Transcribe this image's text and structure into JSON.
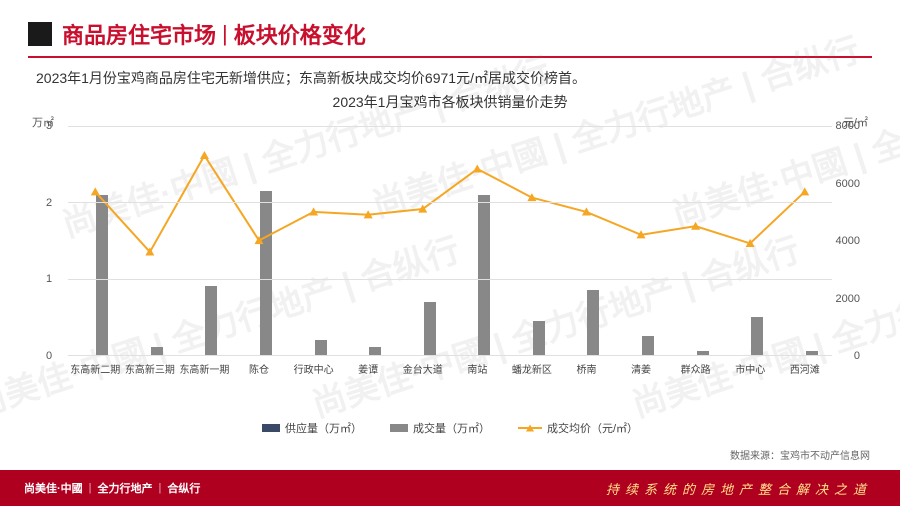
{
  "header": {
    "title_a": "商品房住宅市场",
    "title_b": "板块价格变化"
  },
  "subtitle": "2023年1月份宝鸡商品房住宅无新增供应；东高新板块成交均价6971元/㎡居成交价榜首。",
  "chart": {
    "type": "combo-bar-line",
    "title": "2023年1月宝鸡市各板块供销量价走势",
    "y_left": {
      "label": "万㎡",
      "min": 0,
      "max": 3,
      "ticks": [
        0,
        1,
        2,
        3
      ]
    },
    "y_right": {
      "label": "元/㎡",
      "min": 0,
      "max": 8000,
      "ticks": [
        0,
        2000,
        4000,
        6000,
        8000
      ]
    },
    "categories": [
      "东高新二期",
      "东高新三期",
      "东高新一期",
      "陈仓",
      "行政中心",
      "姜谭",
      "金台大道",
      "南站",
      "蟠龙新区",
      "桥南",
      "清姜",
      "群众路",
      "市中心",
      "西河滩"
    ],
    "supply": [
      0,
      0,
      0,
      0,
      0,
      0,
      0,
      0,
      0,
      0,
      0,
      0,
      0,
      0
    ],
    "volume": [
      2.1,
      0.1,
      0.9,
      2.15,
      0.2,
      0.1,
      0.7,
      2.1,
      0.45,
      0.85,
      0.25,
      0.05,
      0.5,
      0.05
    ],
    "price": [
      5700,
      3600,
      6971,
      4000,
      5000,
      4900,
      5100,
      6500,
      5500,
      5000,
      4200,
      4500,
      3900,
      5700
    ],
    "colors": {
      "supply": "#3a4a66",
      "volume": "#888888",
      "price_line": "#f5a623",
      "grid": "#e0e0e0"
    },
    "legend": {
      "supply": "供应量（万㎡）",
      "volume": "成交量（万㎡）",
      "price": "成交均价（元/㎡）"
    },
    "source": "数据来源：宝鸡市不动产信息网"
  },
  "footer": {
    "brands": [
      "尚美佳·中國",
      "全力行地产",
      "合纵行"
    ],
    "slogan": "持续系统的房地产整合解决之道"
  },
  "watermark": "尚美佳·中國 | 全力行地产 | 合纵行"
}
